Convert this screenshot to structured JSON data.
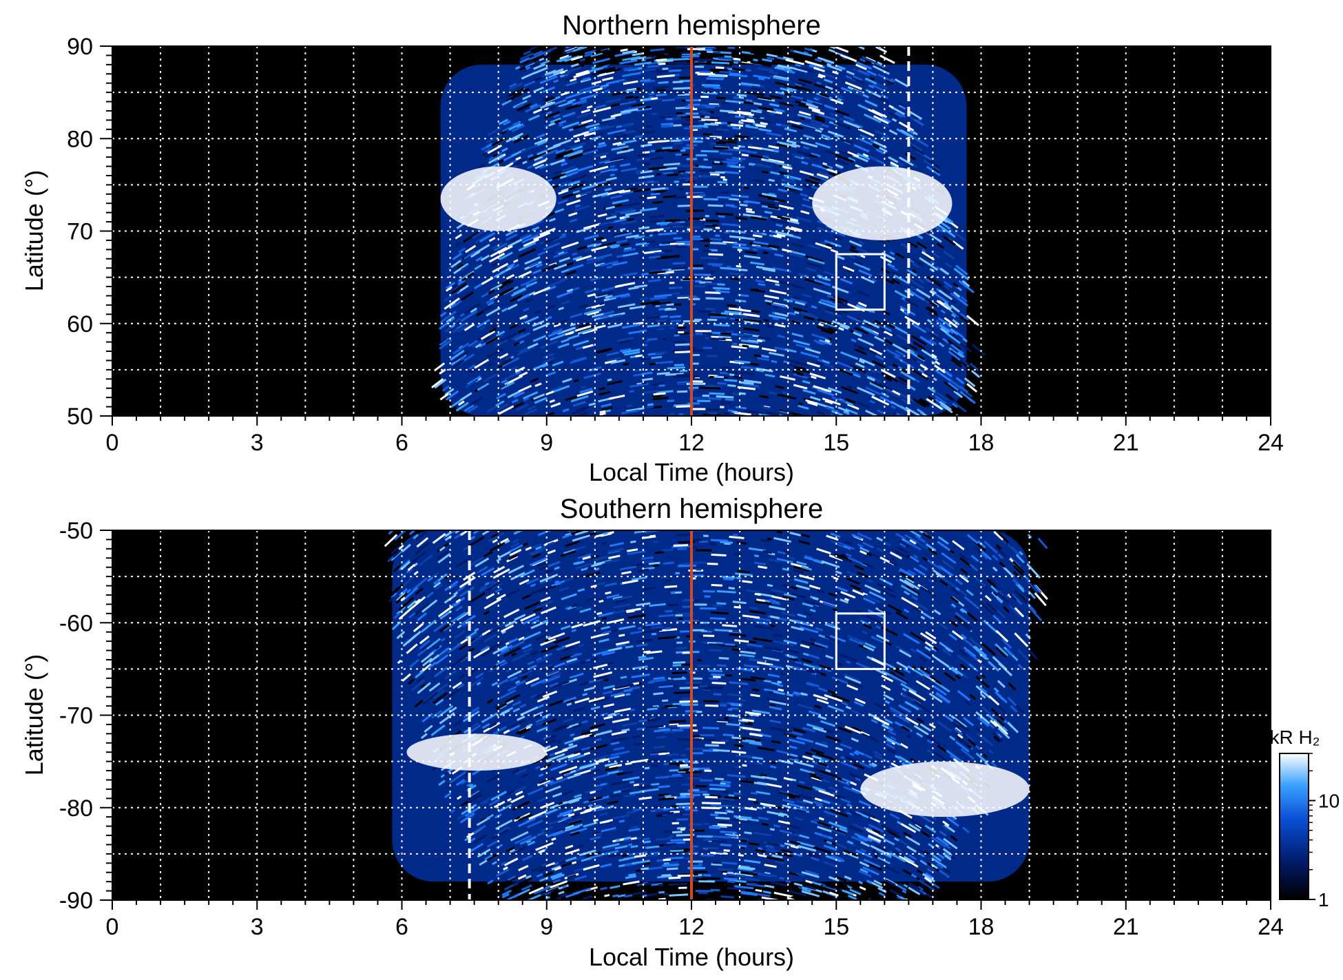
{
  "colors": {
    "background": "#000000",
    "noon_line": "#d24a1e",
    "grid": "#ffffff",
    "emission_low": "#001a66",
    "emission_mid": "#1e78ff",
    "emission_high": "#ffffff"
  },
  "chart_data": [
    {
      "type": "heatmap",
      "title": "Northern hemisphere",
      "xlabel": "Local Time (hours)",
      "ylabel": "Latitude (°)",
      "xlim": [
        0,
        24
      ],
      "ylim": [
        50,
        90
      ],
      "xticks": [
        0,
        3,
        6,
        9,
        12,
        15,
        18,
        21,
        24
      ],
      "xtick_labels": [
        "0",
        "3",
        "6",
        "9",
        "12",
        "15",
        "18",
        "21",
        "24"
      ],
      "yticks": [
        50,
        60,
        70,
        80,
        90
      ],
      "ytick_labels": [
        "50",
        "60",
        "70",
        "80",
        "90"
      ],
      "grid": true,
      "grid_x": [
        1,
        2,
        3,
        4,
        5,
        6,
        7,
        8,
        9,
        10,
        11,
        12,
        13,
        14,
        15,
        16,
        17,
        18,
        19,
        20,
        21,
        22,
        23
      ],
      "grid_y": [
        55,
        60,
        65,
        70,
        75,
        80,
        85
      ],
      "vertical_lines": [
        {
          "x": 12,
          "style": "solid",
          "color": "#d24a1e"
        },
        {
          "x": 16.5,
          "style": "dashed",
          "color": "#ffffff"
        }
      ],
      "box": {
        "x": [
          15,
          16
        ],
        "y": [
          61.5,
          67.5
        ]
      },
      "emission_extent_lt": [
        6.6,
        17.9
      ],
      "bright_regions": [
        {
          "lt": [
            6.8,
            9.2
          ],
          "lat": [
            70,
            77
          ]
        },
        {
          "lt": [
            14.5,
            17.4
          ],
          "lat": [
            69,
            77
          ]
        }
      ]
    },
    {
      "type": "heatmap",
      "title": "Southern hemisphere",
      "xlabel": "Local Time (hours)",
      "ylabel": "Latitude (°)",
      "xlim": [
        0,
        24
      ],
      "ylim": [
        -90,
        -50
      ],
      "xticks": [
        0,
        3,
        6,
        9,
        12,
        15,
        18,
        21,
        24
      ],
      "xtick_labels": [
        "0",
        "3",
        "6",
        "9",
        "12",
        "15",
        "18",
        "21",
        "24"
      ],
      "yticks": [
        -90,
        -80,
        -70,
        -60,
        -50
      ],
      "ytick_labels": [
        "-90",
        "-80",
        "-70",
        "-60",
        "-50"
      ],
      "grid": true,
      "grid_x": [
        1,
        2,
        3,
        4,
        5,
        6,
        7,
        8,
        9,
        10,
        11,
        12,
        13,
        14,
        15,
        16,
        17,
        18,
        19,
        20,
        21,
        22,
        23
      ],
      "grid_y": [
        -85,
        -80,
        -75,
        -70,
        -65,
        -60,
        -55
      ],
      "vertical_lines": [
        {
          "x": 12,
          "style": "solid",
          "color": "#d24a1e"
        },
        {
          "x": 7.4,
          "style": "dashed",
          "color": "#ffffff"
        }
      ],
      "box": {
        "x": [
          15,
          16
        ],
        "y": [
          -65,
          -59
        ]
      },
      "emission_extent_lt": [
        5.6,
        19.2
      ],
      "bright_regions": [
        {
          "lt": [
            6.1,
            9.0
          ],
          "lat": [
            -76,
            -72
          ]
        },
        {
          "lt": [
            15.5,
            19.0
          ],
          "lat": [
            -81,
            -75
          ]
        }
      ]
    }
  ],
  "colorbar": {
    "label": "kR H₂",
    "scale": "log",
    "range": [
      1,
      30
    ],
    "ticks": [
      1,
      10
    ],
    "tick_labels": [
      "1",
      "10"
    ]
  }
}
